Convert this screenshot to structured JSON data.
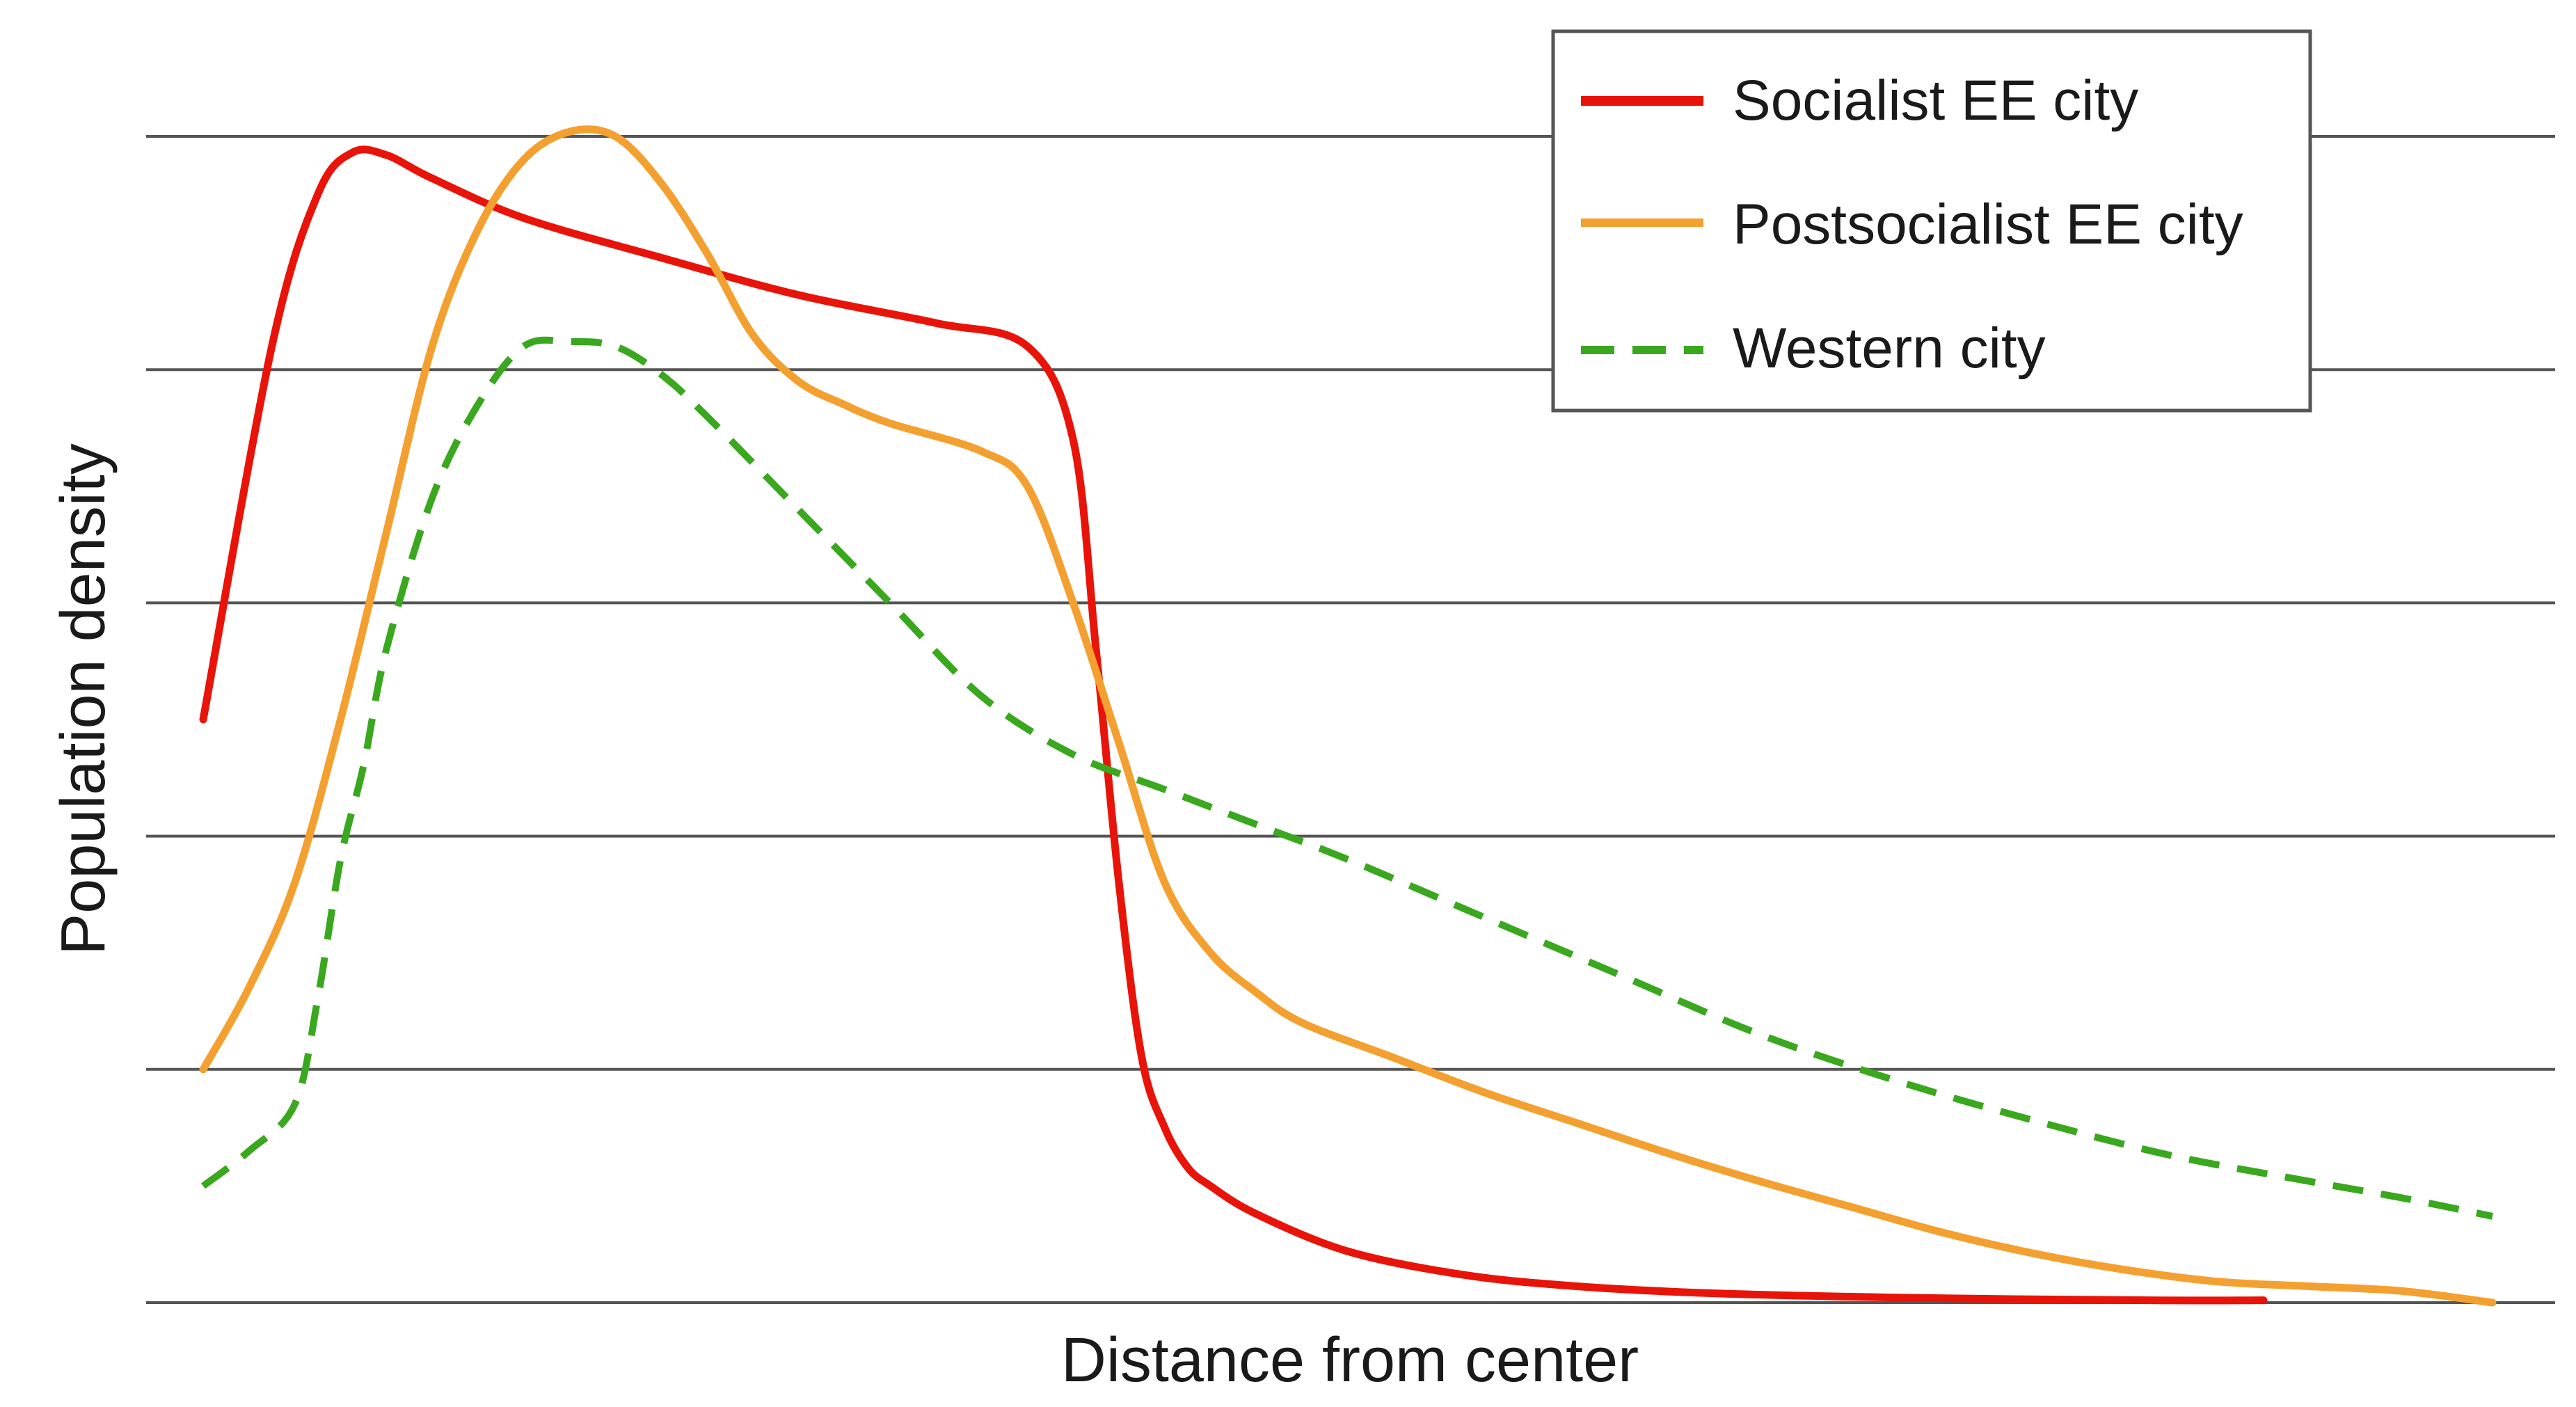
{
  "chart_data": {
    "type": "line",
    "title": "",
    "xlabel": "Distance from center",
    "ylabel": "Population density",
    "xlim": [
      0,
      100
    ],
    "ylim": [
      0,
      5
    ],
    "grid": true,
    "tick_labels": false,
    "legend_position": "top-right",
    "series": [
      {
        "name": "Socialist EE city",
        "color": "#e8140a",
        "style": "solid",
        "x": [
          0,
          3,
          5,
          6.5,
          8,
          10,
          14,
          20,
          26,
          32,
          36,
          38,
          39,
          40,
          41,
          42,
          43,
          44,
          46,
          50,
          55,
          60,
          66,
          75,
          85,
          90
        ],
        "y": [
          2.5,
          4.1,
          4.75,
          4.93,
          4.92,
          4.82,
          4.65,
          4.48,
          4.32,
          4.2,
          4.1,
          3.7,
          2.8,
          1.8,
          1.05,
          0.75,
          0.58,
          0.5,
          0.38,
          0.22,
          0.12,
          0.07,
          0.04,
          0.02,
          0.01,
          0.01
        ]
      },
      {
        "name": "Postsocialist EE city",
        "color": "#f4a030",
        "style": "solid",
        "x": [
          0,
          2,
          4,
          6,
          8,
          10,
          12,
          14,
          16,
          18,
          20,
          22,
          24,
          26,
          28,
          30,
          34,
          36,
          38,
          40,
          42,
          44,
          46,
          48,
          52,
          56,
          60,
          64,
          68,
          72,
          76,
          80,
          84,
          88,
          92,
          96,
          100
        ],
        "y": [
          1.0,
          1.35,
          1.8,
          2.5,
          3.3,
          4.1,
          4.6,
          4.9,
          5.02,
          5.0,
          4.8,
          4.5,
          4.15,
          3.95,
          3.85,
          3.77,
          3.65,
          3.5,
          3.0,
          2.4,
          1.8,
          1.5,
          1.33,
          1.2,
          1.05,
          0.9,
          0.77,
          0.64,
          0.52,
          0.41,
          0.3,
          0.21,
          0.14,
          0.09,
          0.07,
          0.05,
          0.0
        ]
      },
      {
        "name": "Western city",
        "color": "#3aa81e",
        "style": "dashed",
        "x": [
          0,
          2,
          4,
          5,
          6,
          7,
          8,
          10,
          12,
          14,
          16,
          18,
          20,
          22,
          26,
          30,
          34,
          38,
          42,
          46,
          50,
          56,
          62,
          68,
          74,
          80,
          86,
          92,
          96,
          100
        ],
        "y": [
          0.5,
          0.65,
          0.85,
          1.3,
          1.9,
          2.3,
          2.8,
          3.45,
          3.85,
          4.1,
          4.12,
          4.1,
          3.98,
          3.8,
          3.4,
          3.0,
          2.6,
          2.35,
          2.2,
          2.05,
          1.9,
          1.65,
          1.4,
          1.15,
          0.95,
          0.78,
          0.63,
          0.52,
          0.45,
          0.37
        ]
      }
    ]
  }
}
